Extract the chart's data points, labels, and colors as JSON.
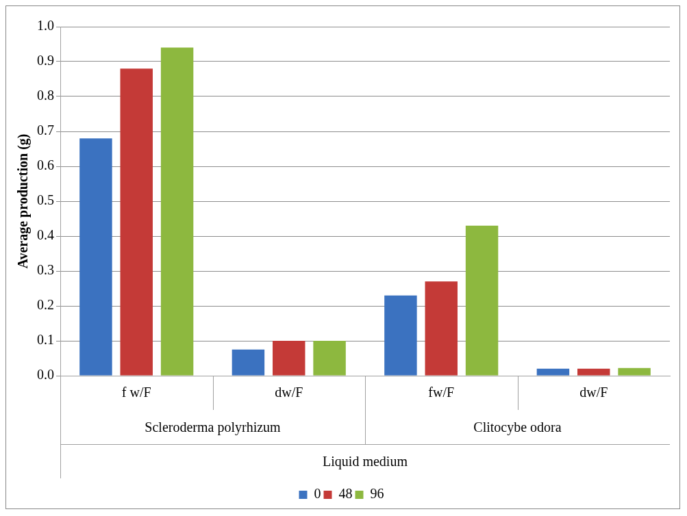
{
  "chart_data": {
    "type": "bar",
    "ylabel": "Average production (g)",
    "xlabel": "Liquid medium",
    "annotations": [
      "Scleroderma polyrhizum",
      "Clitocybe odora"
    ],
    "categories": [
      "f w/F",
      "dw/F",
      "fw/F",
      "dw/F"
    ],
    "series": [
      {
        "name": "0",
        "color": "#3b72c0",
        "values": [
          0.68,
          0.075,
          0.23,
          0.02
        ]
      },
      {
        "name": "48",
        "color": "#c43a37",
        "values": [
          0.88,
          0.1,
          0.27,
          0.02
        ]
      },
      {
        "name": "96",
        "color": "#8db83f",
        "values": [
          0.94,
          0.1,
          0.43,
          0.022
        ]
      }
    ],
    "ylim": [
      0,
      1
    ],
    "yticks": [
      {
        "value": 0,
        "label": "0.0"
      },
      {
        "value": 0.1,
        "label": "0.1"
      },
      {
        "value": 0.2,
        "label": "0.2"
      },
      {
        "value": 0.3,
        "label": "0.3"
      },
      {
        "value": 0.4,
        "label": "0.4"
      },
      {
        "value": 0.5,
        "label": "0.5"
      },
      {
        "value": 0.6,
        "label": "0.6"
      },
      {
        "value": 0.7,
        "label": "0.7"
      },
      {
        "value": 0.8,
        "label": "0.8"
      },
      {
        "value": 0.9,
        "label": "0.9"
      },
      {
        "value": 1,
        "label": "1.0"
      }
    ],
    "grid": "y",
    "legend": "bottom"
  }
}
